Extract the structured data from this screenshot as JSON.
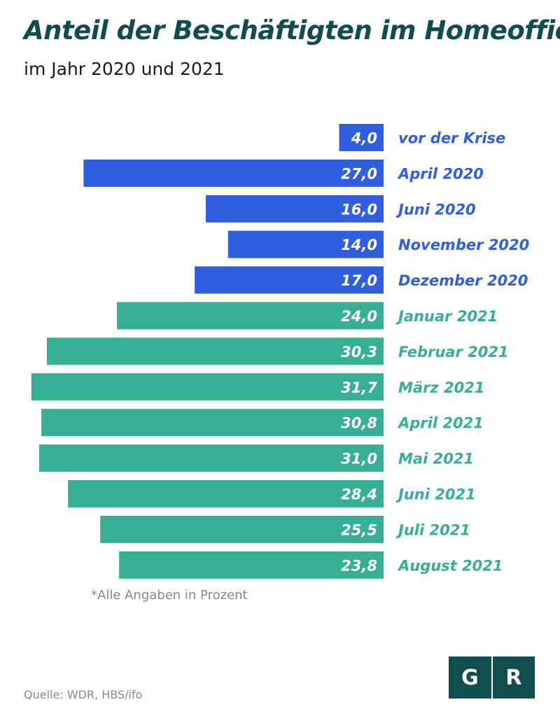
{
  "header": {
    "title": "Anteil der Beschäftigten im Homeoffice",
    "subtitle": "im Jahr 2020 und 2021"
  },
  "footnote": "*Alle Angaben in Prozent",
  "source": "Quelle: WDR, HBS/ifo",
  "logo": {
    "left": "G",
    "right": "R",
    "color": "#0f4d4f"
  },
  "colors": {
    "year2020": "#2f5fdf",
    "year2021": "#36b094",
    "title": "#0f4d4f"
  },
  "chart_data": {
    "type": "bar",
    "orientation": "horizontal",
    "categories": [
      "vor der Krise",
      "April 2020",
      "Juni 2020",
      "November 2020",
      "Dezember 2020",
      "Januar 2021",
      "Februar 2021",
      "März 2021",
      "April 2021",
      "Mai 2021",
      "Juni 2021",
      "Juli 2021",
      "August 2021"
    ],
    "values": [
      4.0,
      27.0,
      16.0,
      14.0,
      17.0,
      24.0,
      30.3,
      31.7,
      30.8,
      31.0,
      28.4,
      25.5,
      23.8
    ],
    "value_labels": [
      "4,0",
      "27,0",
      "16,0",
      "14,0",
      "17,0",
      "24,0",
      "30,3",
      "31,7",
      "30,8",
      "31,0",
      "28,4",
      "25,5",
      "23,8"
    ],
    "groups": [
      "year2020",
      "year2020",
      "year2020",
      "year2020",
      "year2020",
      "year2021",
      "year2021",
      "year2021",
      "year2021",
      "year2021",
      "year2021",
      "year2021",
      "year2021"
    ],
    "title": "Anteil der Beschäftigten im Homeoffice",
    "subtitle": "im Jahr 2020 und 2021",
    "xlim": [
      0,
      32
    ],
    "bar_direction": "right-to-left",
    "grid": false,
    "legend": "none"
  }
}
